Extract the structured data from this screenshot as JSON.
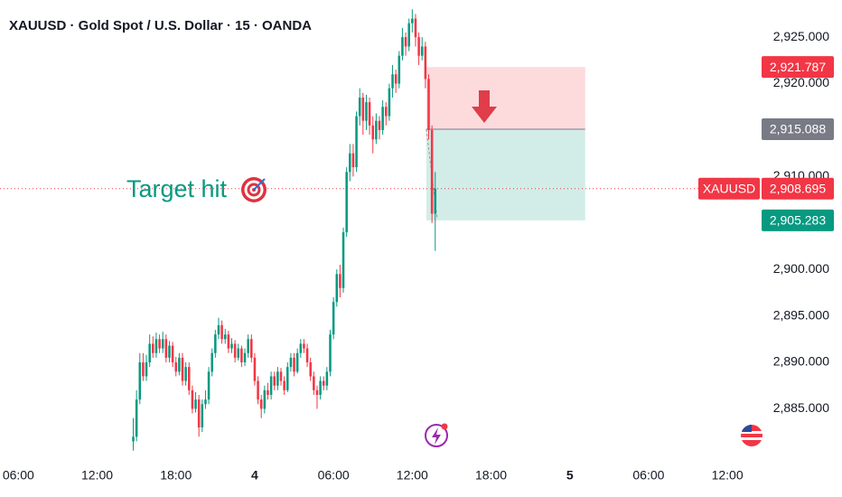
{
  "chart_data": {
    "type": "candlestick",
    "title": "XAUUSD · Gold Spot / U.S. Dollar · 15 · OANDA",
    "up_color": "#089981",
    "down_color": "#f23645",
    "xlim": [
      4.6,
      62.4
    ],
    "ylim": [
      2879.4,
      2929
    ],
    "grid": false,
    "xticks": [
      {
        "value": 6,
        "label": "06:00"
      },
      {
        "value": 12,
        "label": "12:00"
      },
      {
        "value": 18,
        "label": "18:00"
      },
      {
        "value": 24,
        "label": "4"
      },
      {
        "value": 30,
        "label": "06:00"
      },
      {
        "value": 36,
        "label": "12:00"
      },
      {
        "value": 42,
        "label": "18:00"
      },
      {
        "value": 48,
        "label": "5"
      },
      {
        "value": 54,
        "label": "06:00"
      },
      {
        "value": 60,
        "label": "12:00"
      }
    ],
    "yticks": [
      {
        "value": 2925,
        "label": "2,925.000"
      },
      {
        "value": 2920,
        "label": "2,920.000"
      },
      {
        "value": 2915,
        "label": "2,915.000"
      },
      {
        "value": 2910,
        "label": "2,910.000"
      },
      {
        "value": 2905,
        "label": "2,905.000"
      },
      {
        "value": 2900,
        "label": "2,900.000"
      },
      {
        "value": 2895,
        "label": "2,895.000"
      },
      {
        "value": 2890,
        "label": "2,890.000"
      },
      {
        "value": 2885,
        "label": "2,885.000"
      }
    ],
    "x": [
      14.75,
      15,
      15.25,
      15.5,
      15.75,
      16,
      16.25,
      16.5,
      16.75,
      17,
      17.25,
      17.5,
      17.75,
      18,
      18.25,
      18.5,
      18.75,
      19,
      19.25,
      19.5,
      19.75,
      20,
      20.25,
      20.5,
      20.75,
      21,
      21.25,
      21.5,
      21.75,
      22,
      22.25,
      22.5,
      22.75,
      23,
      23.25,
      23.5,
      23.75,
      24,
      24.25,
      24.5,
      24.75,
      25,
      25.25,
      25.5,
      25.75,
      26,
      26.25,
      26.5,
      26.75,
      27,
      27.25,
      27.5,
      27.75,
      28,
      28.25,
      28.5,
      28.75,
      29,
      29.25,
      29.5,
      29.75,
      30,
      30.25,
      30.5,
      30.75,
      31,
      31.25,
      31.5,
      31.75,
      32,
      32.25,
      32.5,
      32.75,
      33,
      33.25,
      33.5,
      33.75,
      34,
      34.25,
      34.5,
      34.75,
      35,
      35.25,
      35.5,
      35.75,
      36,
      36.25,
      36.5,
      36.75,
      37,
      37.25,
      37.5,
      37.75
    ],
    "ohlc": [
      [
        2881.5,
        2884,
        2880.5,
        2882
      ],
      [
        2882,
        2887,
        2881.5,
        2886
      ],
      [
        2886,
        2891,
        2885.5,
        2890
      ],
      [
        2890,
        2891,
        2888,
        2888.5
      ],
      [
        2888.5,
        2890.8,
        2888,
        2890
      ],
      [
        2890,
        2893,
        2889.5,
        2892
      ],
      [
        2892,
        2892.8,
        2890.5,
        2891
      ],
      [
        2891,
        2893.2,
        2890.5,
        2892.5
      ],
      [
        2892.5,
        2893,
        2891,
        2891.5
      ],
      [
        2891.5,
        2893.3,
        2891,
        2892.5
      ],
      [
        2892.5,
        2893,
        2890,
        2890.5
      ],
      [
        2890.5,
        2892.3,
        2890,
        2891.8
      ],
      [
        2891.8,
        2892.2,
        2889.5,
        2890
      ],
      [
        2890,
        2890.6,
        2888.5,
        2889
      ],
      [
        2889,
        2891,
        2888.6,
        2890.5
      ],
      [
        2890.5,
        2891,
        2887.5,
        2888
      ],
      [
        2888,
        2890,
        2887.5,
        2889.5
      ],
      [
        2889.5,
        2890,
        2886.5,
        2887
      ],
      [
        2887,
        2887.5,
        2884.5,
        2885
      ],
      [
        2885,
        2886.8,
        2884.6,
        2886
      ],
      [
        2886,
        2886.5,
        2882,
        2883
      ],
      [
        2883,
        2886,
        2882.5,
        2885.5
      ],
      [
        2885.5,
        2887,
        2885,
        2886
      ],
      [
        2886,
        2889.5,
        2885.5,
        2889
      ],
      [
        2889,
        2891.5,
        2888.5,
        2891
      ],
      [
        2891,
        2893.5,
        2890.5,
        2893
      ],
      [
        2893,
        2894.8,
        2892.5,
        2894
      ],
      [
        2894,
        2894.5,
        2892,
        2892.5
      ],
      [
        2892.5,
        2893.6,
        2892,
        2893
      ],
      [
        2893,
        2893.4,
        2891,
        2891.5
      ],
      [
        2891.5,
        2892.6,
        2891,
        2892
      ],
      [
        2892,
        2892.4,
        2890,
        2890.5
      ],
      [
        2890.5,
        2892,
        2890.2,
        2891.5
      ],
      [
        2891.5,
        2891.8,
        2889.5,
        2890
      ],
      [
        2890,
        2891.5,
        2889.6,
        2891
      ],
      [
        2891,
        2893,
        2890.5,
        2892.5
      ],
      [
        2892.5,
        2893,
        2890,
        2890.5
      ],
      [
        2890.5,
        2891,
        2887.5,
        2888
      ],
      [
        2888,
        2888.5,
        2885.5,
        2886
      ],
      [
        2886,
        2886.5,
        2884,
        2885
      ],
      [
        2885,
        2887.5,
        2884.5,
        2887
      ],
      [
        2887,
        2887.8,
        2886,
        2886.5
      ],
      [
        2886.5,
        2889,
        2886,
        2888.5
      ],
      [
        2888.5,
        2889,
        2887,
        2887.5
      ],
      [
        2887.5,
        2889.5,
        2887,
        2889
      ],
      [
        2889,
        2889.4,
        2887.5,
        2888
      ],
      [
        2888,
        2888.5,
        2886.5,
        2887
      ],
      [
        2887,
        2890,
        2886.8,
        2889.5
      ],
      [
        2889.5,
        2891,
        2889,
        2890.5
      ],
      [
        2890.5,
        2891,
        2888.5,
        2889
      ],
      [
        2889,
        2891.5,
        2888.8,
        2891
      ],
      [
        2891,
        2892.5,
        2890.5,
        2892
      ],
      [
        2892,
        2892.5,
        2891,
        2891.5
      ],
      [
        2891.5,
        2892,
        2889.5,
        2890
      ],
      [
        2890,
        2890.5,
        2888,
        2888.5
      ],
      [
        2888.5,
        2889,
        2886.5,
        2887
      ],
      [
        2887,
        2887.5,
        2885,
        2886.5
      ],
      [
        2886.5,
        2888.5,
        2886,
        2888
      ],
      [
        2888,
        2888.5,
        2887,
        2887.5
      ],
      [
        2887.5,
        2889.5,
        2887,
        2889
      ],
      [
        2889,
        2893.5,
        2888.5,
        2893
      ],
      [
        2893,
        2897,
        2892.5,
        2896.5
      ],
      [
        2896.5,
        2900,
        2896,
        2899.5
      ],
      [
        2899.5,
        2900.5,
        2897,
        2898
      ],
      [
        2898,
        2904.5,
        2897.5,
        2904
      ],
      [
        2904,
        2911,
        2903.5,
        2910.5
      ],
      [
        2910.5,
        2913.5,
        2909.5,
        2912.5
      ],
      [
        2912.5,
        2913.5,
        2910,
        2911
      ],
      [
        2911,
        2917,
        2910.5,
        2916.5
      ],
      [
        2916.5,
        2919.5,
        2915.5,
        2918.5
      ],
      [
        2918.5,
        2919,
        2914.5,
        2916
      ],
      [
        2916,
        2918.8,
        2915,
        2918
      ],
      [
        2918,
        2918.5,
        2914.5,
        2915.5
      ],
      [
        2915.5,
        2916.5,
        2912.5,
        2914
      ],
      [
        2914,
        2916.8,
        2913.5,
        2916
      ],
      [
        2916,
        2916.5,
        2914,
        2915
      ],
      [
        2915,
        2918.2,
        2914.5,
        2917.5
      ],
      [
        2917.5,
        2918,
        2915.5,
        2916.5
      ],
      [
        2916.5,
        2920,
        2916,
        2919.5
      ],
      [
        2919.5,
        2922,
        2918.5,
        2921
      ],
      [
        2921,
        2921.5,
        2919,
        2920
      ],
      [
        2920,
        2923.5,
        2919.5,
        2923
      ],
      [
        2923,
        2926,
        2922.5,
        2925
      ],
      [
        2925,
        2925.5,
        2923,
        2924
      ],
      [
        2924,
        2927,
        2923.5,
        2926.5
      ],
      [
        2926.5,
        2928,
        2925.5,
        2927
      ],
      [
        2927,
        2927.5,
        2924,
        2925
      ],
      [
        2925,
        2925.5,
        2922,
        2923
      ],
      [
        2923,
        2925,
        2922.5,
        2924
      ],
      [
        2924,
        2924.5,
        2919.5,
        2920.5
      ],
      [
        2920.5,
        2921,
        2914,
        2915
      ],
      [
        2915,
        2915.5,
        2905,
        2906
      ],
      [
        2906,
        2910.5,
        2902,
        2908.695
      ]
    ],
    "position": {
      "x": [
        37.07,
        49.17
      ],
      "stop": {
        "value": 2921.787,
        "label": "2,921.787",
        "color": "#f23645"
      },
      "entry": {
        "value": 2915.088,
        "label": "2,915.088",
        "color": "#787b86"
      },
      "target": {
        "value": 2905.283,
        "label": "2,905.283",
        "color": "#089981"
      }
    },
    "last_price": {
      "name": "XAUUSD",
      "value": 2908.695,
      "label": "2,908.695",
      "color": "#f23645"
    },
    "annotation": {
      "text": "Target hit",
      "color": "#089981"
    }
  }
}
